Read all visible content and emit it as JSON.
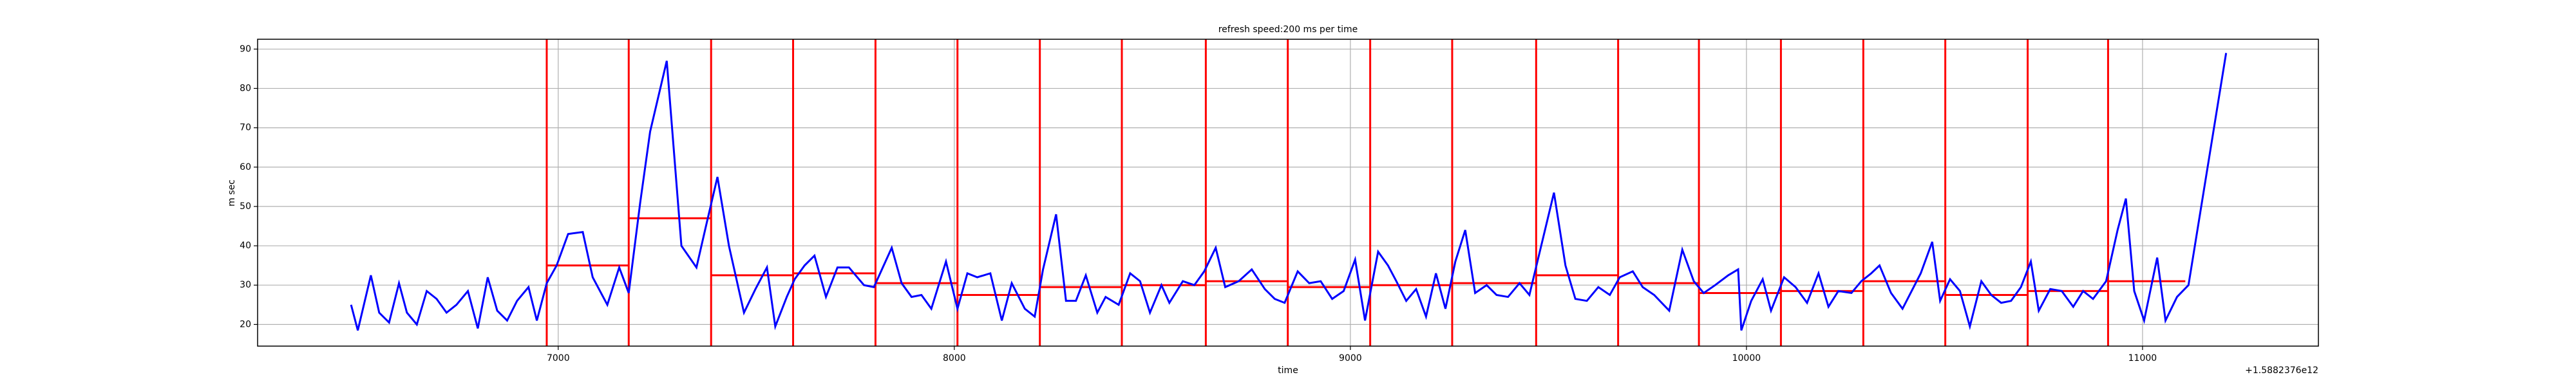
{
  "chart_data": {
    "type": "line",
    "title": "refresh speed:200 ms per time",
    "xlabel": "time",
    "ylabel": "m sec",
    "x_offset_label": "+1.5882376e12",
    "color": "#0000ff",
    "grid": true,
    "xlim": [
      6241,
      11444
    ],
    "ylim": [
      14.5,
      92.5
    ],
    "xticks": [
      7000,
      8000,
      9000,
      10000,
      11000
    ],
    "yticks": [
      20,
      30,
      40,
      50,
      60,
      70,
      80,
      90
    ],
    "x": [
      6477,
      6494,
      6527,
      6548,
      6573,
      6598,
      6618,
      6643,
      6668,
      6693,
      6718,
      6743,
      6772,
      6797,
      6822,
      6846,
      6871,
      6896,
      6925,
      6946,
      6971,
      6996,
      7025,
      7062,
      7087,
      7124,
      7154,
      7178,
      7207,
      7232,
      7274,
      7311,
      7349,
      7373,
      7402,
      7431,
      7469,
      7498,
      7527,
      7548,
      7577,
      7597,
      7622,
      7647,
      7676,
      7705,
      7734,
      7772,
      7797,
      7842,
      7867,
      7892,
      7917,
      7942,
      7979,
      8008,
      8033,
      8058,
      8091,
      8120,
      8145,
      8178,
      8203,
      8224,
      8257,
      8282,
      8307,
      8332,
      8361,
      8382,
      8415,
      8444,
      8469,
      8494,
      8523,
      8543,
      8577,
      8606,
      8631,
      8660,
      8684,
      8718,
      8751,
      8784,
      8809,
      8834,
      8867,
      8896,
      8925,
      8954,
      8983,
      9012,
      9037,
      9070,
      9095,
      9116,
      9141,
      9166,
      9191,
      9216,
      9240,
      9265,
      9290,
      9315,
      9344,
      9369,
      9398,
      9427,
      9452,
      9477,
      9514,
      9543,
      9568,
      9597,
      9626,
      9655,
      9680,
      9713,
      9738,
      9767,
      9805,
      9838,
      9867,
      9892,
      9921,
      9954,
      9979,
      9987,
      10012,
      10041,
      10062,
      10095,
      10124,
      10153,
      10182,
      10207,
      10232,
      10265,
      10290,
      10315,
      10336,
      10365,
      10394,
      10440,
      10469,
      10489,
      10514,
      10539,
      10564,
      10593,
      10618,
      10643,
      10668,
      10693,
      10718,
      10738,
      10767,
      10796,
      10825,
      10850,
      10875,
      10908,
      10937,
      10958,
      10979,
      11004,
      11037,
      11058,
      11087,
      11116,
      11211
    ],
    "values": [
      25,
      18.5,
      32.5,
      23,
      20.5,
      30.5,
      23,
      20,
      28.5,
      26.5,
      23,
      25,
      28.5,
      19,
      32,
      23.5,
      21,
      26,
      29.5,
      21,
      30.5,
      35,
      43,
      43.5,
      32,
      25,
      34.5,
      28,
      51,
      69,
      87,
      40,
      34.5,
      45,
      57.5,
      40,
      23,
      29,
      34.5,
      19.5,
      27,
      31.5,
      35,
      37.5,
      27,
      34.5,
      34.5,
      30,
      29.5,
      39.5,
      30.5,
      27,
      27.5,
      24,
      36,
      24,
      33,
      32,
      33,
      21,
      30.5,
      24,
      22,
      34,
      48,
      26,
      26,
      32.5,
      23,
      27,
      25,
      33,
      31,
      23,
      30,
      25.5,
      31,
      30,
      33.5,
      39.5,
      29.5,
      31,
      34,
      29,
      26.5,
      25.5,
      33.5,
      30.5,
      31,
      26.5,
      28.5,
      36.5,
      21,
      38.5,
      35,
      31,
      26,
      29,
      22,
      33,
      24,
      36,
      44,
      28,
      30,
      27.5,
      27,
      30.5,
      27.5,
      38,
      53.5,
      35,
      26.5,
      26,
      29.5,
      27.5,
      32,
      33.5,
      29.5,
      27.5,
      23.5,
      39,
      31,
      28,
      30,
      32.5,
      34,
      18.5,
      26,
      31.5,
      23.5,
      32,
      29.5,
      25.5,
      33,
      24.5,
      28.5,
      28,
      31,
      33,
      35,
      28,
      24,
      33,
      41,
      26,
      31.5,
      28.5,
      19.5,
      31,
      27.5,
      25.5,
      26,
      29.5,
      36,
      23.5,
      29,
      28.5,
      24.5,
      28.5,
      26.5,
      31,
      44,
      52,
      28.5,
      21,
      37,
      21,
      27,
      30,
      89
    ],
    "vlines": {
      "color": "#ff0000",
      "x": [
        6971,
        7178,
        7386,
        7593,
        7801,
        8008,
        8216,
        8423,
        8635,
        8842,
        9050,
        9257,
        9469,
        9676,
        9880,
        10087,
        10295,
        10502,
        10710,
        10913
      ]
    },
    "means": [
      {
        "x": [
          6971,
          7178
        ],
        "value": 35
      },
      {
        "x": [
          7178,
          7386
        ],
        "value": 47
      },
      {
        "x": [
          7386,
          7593
        ],
        "value": 32.5
      },
      {
        "x": [
          7593,
          7801
        ],
        "value": 33
      },
      {
        "x": [
          7801,
          8008
        ],
        "value": 30.5
      },
      {
        "x": [
          8008,
          8216
        ],
        "value": 27.5
      },
      {
        "x": [
          8216,
          8423
        ],
        "value": 29.5
      },
      {
        "x": [
          8423,
          8635
        ],
        "value": 30
      },
      {
        "x": [
          8635,
          8842
        ],
        "value": 31
      },
      {
        "x": [
          8842,
          9050
        ],
        "value": 29.5
      },
      {
        "x": [
          9050,
          9257
        ],
        "value": 30
      },
      {
        "x": [
          9257,
          9469
        ],
        "value": 30.5
      },
      {
        "x": [
          9469,
          9676
        ],
        "value": 32.5
      },
      {
        "x": [
          9676,
          9880
        ],
        "value": 30.5
      },
      {
        "x": [
          9880,
          10087
        ],
        "value": 28
      },
      {
        "x": [
          10087,
          10295
        ],
        "value": 28.5
      },
      {
        "x": [
          10295,
          10502
        ],
        "value": 31
      },
      {
        "x": [
          10502,
          10710
        ],
        "value": 27.5
      },
      {
        "x": [
          10710,
          10913
        ],
        "value": 28.5
      },
      {
        "x": [
          10913,
          11108
        ],
        "value": 31
      }
    ]
  }
}
